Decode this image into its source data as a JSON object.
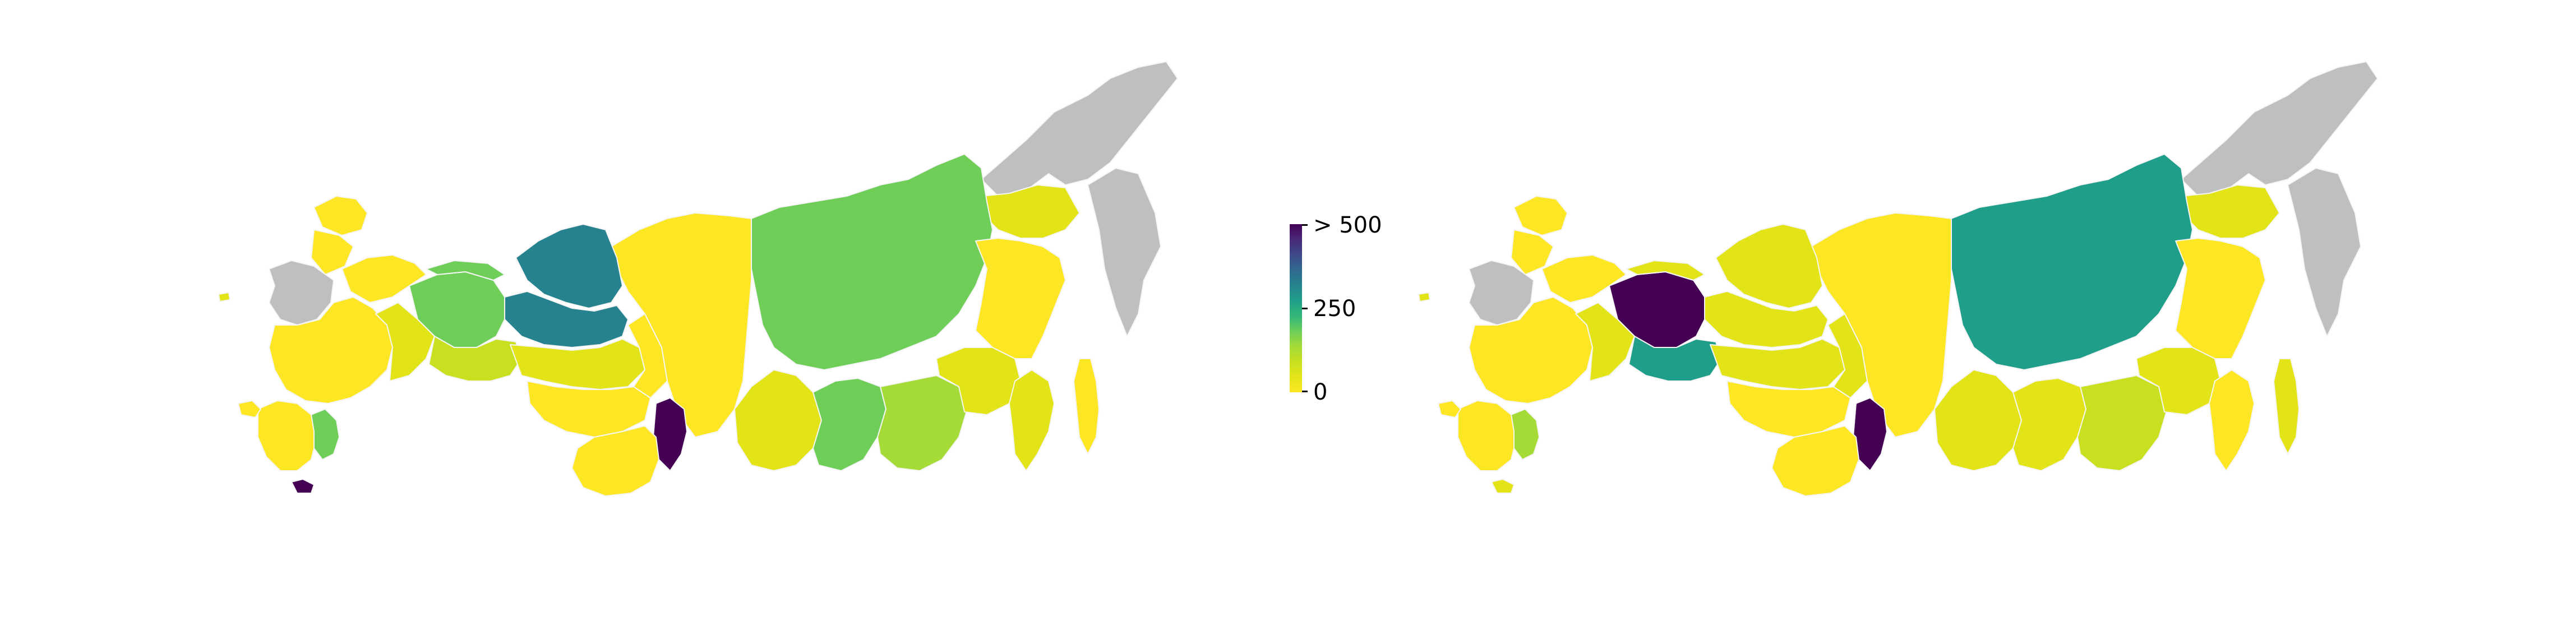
{
  "colors": {
    "missing": "#bfbfbf",
    "scale": [
      "#fde725",
      "#e3e418",
      "#c8e020",
      "#a5db36",
      "#6ece58",
      "#35b779",
      "#1f9e89",
      "#26828e",
      "#31688e",
      "#3e4989",
      "#482878",
      "#440154"
    ]
  },
  "colorbar": {
    "max_label": "> 500",
    "mid_label": "250",
    "min_label": "0",
    "range": [
      0,
      500
    ]
  },
  "maps": [
    {
      "regions": [
        {
          "id": "chukotka",
          "value": null
        },
        {
          "id": "kamchatka",
          "value": null
        },
        {
          "id": "magadan",
          "value": 60
        },
        {
          "id": "sakha",
          "value": 190
        },
        {
          "id": "krasnoyarsk",
          "value": 20
        },
        {
          "id": "yamalo-nenets",
          "value": 300
        },
        {
          "id": "khanty-mansi",
          "value": 300
        },
        {
          "id": "komi",
          "value": 180
        },
        {
          "id": "nenets",
          "value": 180
        },
        {
          "id": "arkhangelsk",
          "value": 15
        },
        {
          "id": "murmansk",
          "value": 10
        },
        {
          "id": "karelia",
          "value": 10
        },
        {
          "id": "northwest-central",
          "value": null
        },
        {
          "id": "european-core",
          "value": 20
        },
        {
          "id": "volga",
          "value": 50
        },
        {
          "id": "ural",
          "value": 80
        },
        {
          "id": "tyumen-south",
          "value": 40
        },
        {
          "id": "omsk-novosibirsk",
          "value": 10
        },
        {
          "id": "tomsk",
          "value": 20
        },
        {
          "id": "kemerovo",
          "value": 520
        },
        {
          "id": "altai",
          "value": 10
        },
        {
          "id": "irkutsk",
          "value": 60
        },
        {
          "id": "buryatia",
          "value": 200
        },
        {
          "id": "zabaykalsky",
          "value": 120
        },
        {
          "id": "amur",
          "value": 40
        },
        {
          "id": "khabarovsk",
          "value": 20
        },
        {
          "id": "primorye",
          "value": 60
        },
        {
          "id": "sakhalin",
          "value": 20
        },
        {
          "id": "caucasus-west",
          "value": 10
        },
        {
          "id": "caucasus-east",
          "value": 200
        },
        {
          "id": "dagestan",
          "value": 560
        },
        {
          "id": "crimea",
          "value": 10
        },
        {
          "id": "kaliningrad",
          "value": 40
        }
      ]
    },
    {
      "regions": [
        {
          "id": "chukotka",
          "value": null
        },
        {
          "id": "kamchatka",
          "value": null
        },
        {
          "id": "magadan",
          "value": 60
        },
        {
          "id": "sakha",
          "value": 270
        },
        {
          "id": "krasnoyarsk",
          "value": 20
        },
        {
          "id": "yamalo-nenets",
          "value": 60
        },
        {
          "id": "khanty-mansi",
          "value": 40
        },
        {
          "id": "komi",
          "value": 560
        },
        {
          "id": "nenets",
          "value": 60
        },
        {
          "id": "arkhangelsk",
          "value": 10
        },
        {
          "id": "murmansk",
          "value": 10
        },
        {
          "id": "karelia",
          "value": 10
        },
        {
          "id": "northwest-central",
          "value": null
        },
        {
          "id": "european-core",
          "value": 15
        },
        {
          "id": "volga",
          "value": 40
        },
        {
          "id": "ural",
          "value": 270
        },
        {
          "id": "tyumen-south",
          "value": 40
        },
        {
          "id": "omsk-novosibirsk",
          "value": 10
        },
        {
          "id": "tomsk",
          "value": 30
        },
        {
          "id": "kemerovo",
          "value": 520
        },
        {
          "id": "altai",
          "value": 20
        },
        {
          "id": "irkutsk",
          "value": 30
        },
        {
          "id": "buryatia",
          "value": 60
        },
        {
          "id": "zabaykalsky",
          "value": 110
        },
        {
          "id": "amur",
          "value": 40
        },
        {
          "id": "khabarovsk",
          "value": 15
        },
        {
          "id": "primorye",
          "value": 15
        },
        {
          "id": "sakhalin",
          "value": 30
        },
        {
          "id": "caucasus-west",
          "value": 15
        },
        {
          "id": "caucasus-east",
          "value": 120
        },
        {
          "id": "dagestan",
          "value": 60
        },
        {
          "id": "crimea",
          "value": 20
        },
        {
          "id": "kaliningrad",
          "value": 40
        }
      ]
    }
  ]
}
